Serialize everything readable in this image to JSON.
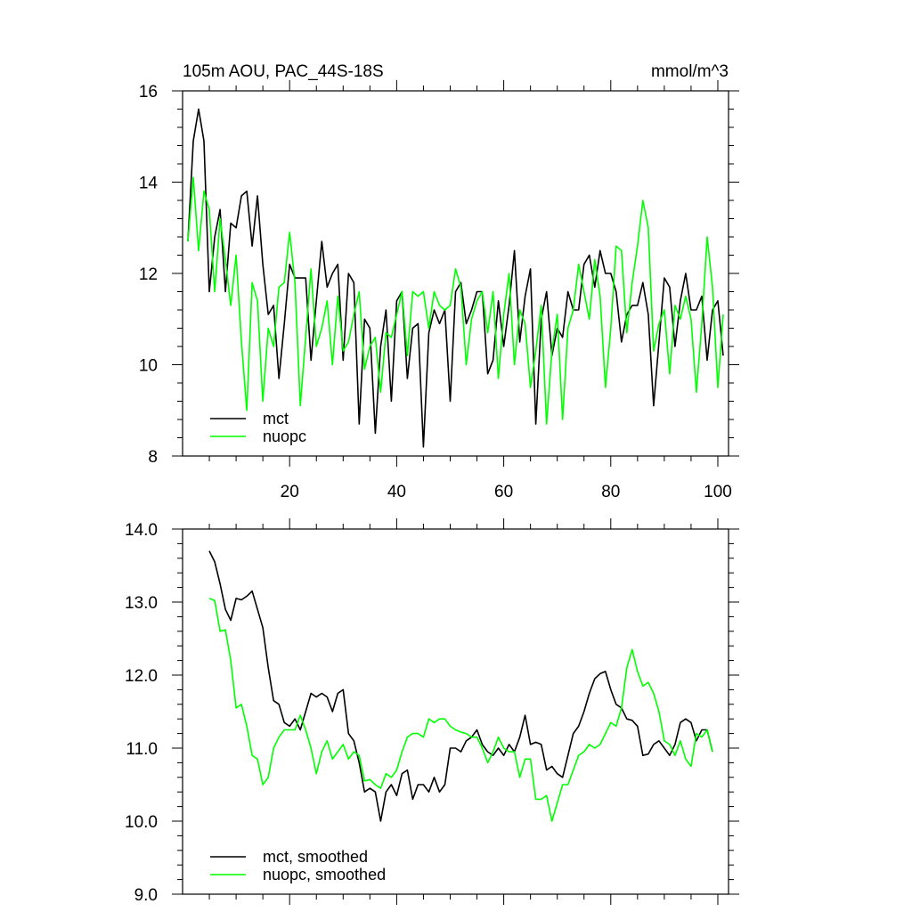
{
  "chart_data": [
    {
      "type": "line",
      "title": "105m AOU, PAC_44S-18S",
      "units": "mmol/m^3",
      "xlim": [
        0,
        102
      ],
      "ylim": [
        8,
        16
      ],
      "xticks": [
        20,
        40,
        60,
        80,
        100
      ],
      "yticks": [
        8,
        10,
        12,
        14,
        16
      ],
      "series": [
        {
          "name": "mct",
          "color": "#000000",
          "x_start": 1,
          "values": [
            12.7,
            14.9,
            15.6,
            14.9,
            11.6,
            12.8,
            13.4,
            11.6,
            13.1,
            13.0,
            13.7,
            13.8,
            12.6,
            13.7,
            12.2,
            11.1,
            11.3,
            9.7,
            10.9,
            12.2,
            11.9,
            11.9,
            11.9,
            10.1,
            11.4,
            12.7,
            11.7,
            12.0,
            12.2,
            10.1,
            12.0,
            11.8,
            8.7,
            11.0,
            10.8,
            8.5,
            10.4,
            11.2,
            9.2,
            11.4,
            11.6,
            9.7,
            10.8,
            10.9,
            8.2,
            10.7,
            11.2,
            10.9,
            11.2,
            9.2,
            11.6,
            11.8,
            10.9,
            11.2,
            11.6,
            11.6,
            9.8,
            10.1,
            11.4,
            10.4,
            11.3,
            12.5,
            10.5,
            11.5,
            12.1,
            8.7,
            11.0,
            11.6,
            10.2,
            10.8,
            10.6,
            11.6,
            11.2,
            11.2,
            12.2,
            12.4,
            11.7,
            12.5,
            12.0,
            12.0,
            11.6,
            10.5,
            11.1,
            11.3,
            11.3,
            11.8,
            11.1,
            9.1,
            10.5,
            11.9,
            11.7,
            10.4,
            11.4,
            12.0,
            11.2,
            11.2,
            11.5,
            10.1,
            11.2,
            11.4,
            10.2
          ],
          "smoothed_note": ""
        },
        {
          "name": "nuopc",
          "color": "#00ff00",
          "x_start": 1,
          "values": [
            12.7,
            14.1,
            12.5,
            13.8,
            13.4,
            11.6,
            13.2,
            12.3,
            11.3,
            12.4,
            10.5,
            9.0,
            11.8,
            11.4,
            9.2,
            10.8,
            10.4,
            11.7,
            11.8,
            12.9,
            11.8,
            9.1,
            10.6,
            12.1,
            10.4,
            10.8,
            11.4,
            10.0,
            11.5,
            10.3,
            10.5,
            11.1,
            11.6,
            9.9,
            10.4,
            10.6,
            9.4,
            10.7,
            10.6,
            11.1,
            11.6,
            10.2,
            11.6,
            11.5,
            11.6,
            10.8,
            11.6,
            11.3,
            11.2,
            11.3,
            12.1,
            11.7,
            10.0,
            11.0,
            11.4,
            11.6,
            10.7,
            11.6,
            9.7,
            11.1,
            12.0,
            10.0,
            11.2,
            10.9,
            9.5,
            10.3,
            11.3,
            8.7,
            10.3,
            11.1,
            8.8,
            10.8,
            11.2,
            12.2,
            11.6,
            11.0,
            12.3,
            11.5,
            9.5,
            10.8,
            12.6,
            12.5,
            10.7,
            11.8,
            12.6,
            13.6,
            13.0,
            10.3,
            10.9,
            11.2,
            9.8,
            11.3,
            11.0,
            11.5,
            11.0,
            9.4,
            10.9,
            12.8,
            11.7,
            9.5,
            11.1
          ]
        }
      ],
      "legend": {
        "placement": "bottom-left",
        "entries": [
          "mct",
          "nuopc"
        ]
      }
    },
    {
      "type": "line",
      "title": "",
      "xlim": [
        0,
        102
      ],
      "ylim": [
        9.0,
        14.0
      ],
      "xticks": [
        20,
        40,
        60,
        80,
        100
      ],
      "xticks_labeled": false,
      "yticks": [
        9.0,
        10.0,
        11.0,
        12.0,
        13.0,
        14.0
      ],
      "ytick_labels": [
        "9.0",
        "10.0",
        "11.0",
        "12.0",
        "13.0",
        "14.0"
      ],
      "series": [
        {
          "name": "mct, smoothed",
          "color": "#000000",
          "x_start": 5,
          "values": [
            13.7,
            13.55,
            13.25,
            12.9,
            12.75,
            13.05,
            13.03,
            13.08,
            13.15,
            12.9,
            12.65,
            12.1,
            11.65,
            11.6,
            11.35,
            11.3,
            11.4,
            11.25,
            11.5,
            11.75,
            11.7,
            11.75,
            11.7,
            11.5,
            11.75,
            11.8,
            11.2,
            11.1,
            10.8,
            10.4,
            10.45,
            10.4,
            10.0,
            10.4,
            10.5,
            10.35,
            10.65,
            10.7,
            10.3,
            10.5,
            10.5,
            10.4,
            10.6,
            10.4,
            10.5,
            11.0,
            11.0,
            10.95,
            11.1,
            11.15,
            11.25,
            11.05,
            10.95,
            10.9,
            11.0,
            10.9,
            11.05,
            10.95,
            11.15,
            11.45,
            11.05,
            11.08,
            11.05,
            10.7,
            10.75,
            10.65,
            10.6,
            10.9,
            11.2,
            11.3,
            11.5,
            11.75,
            11.95,
            12.02,
            12.05,
            11.8,
            11.6,
            11.55,
            11.4,
            11.38,
            11.3,
            10.9,
            10.92,
            11.05,
            11.1,
            11.0,
            10.9,
            11.05,
            11.35,
            11.4,
            11.35,
            11.1,
            11.25,
            11.25,
            10.95
          ],
          "smoothed_note": ""
        },
        {
          "name": "nuopc, smoothed",
          "color": "#00ff00",
          "x_start": 5,
          "values": [
            13.05,
            13.02,
            12.6,
            12.62,
            12.2,
            11.55,
            11.6,
            11.3,
            10.9,
            10.85,
            10.5,
            10.6,
            11.0,
            11.15,
            11.25,
            11.25,
            11.25,
            11.45,
            11.25,
            11.0,
            10.65,
            10.95,
            11.1,
            10.85,
            10.95,
            11.05,
            10.85,
            10.95,
            10.9,
            10.55,
            10.57,
            10.5,
            10.45,
            10.65,
            10.6,
            10.7,
            10.95,
            11.15,
            11.2,
            11.2,
            11.15,
            11.4,
            11.35,
            11.4,
            11.4,
            11.3,
            11.25,
            11.22,
            11.2,
            11.15,
            11.15,
            11.0,
            10.8,
            10.95,
            11.15,
            11.0,
            10.95,
            10.95,
            10.6,
            10.85,
            10.85,
            10.3,
            10.3,
            10.35,
            10.0,
            10.25,
            10.5,
            10.5,
            10.7,
            10.9,
            10.95,
            11.05,
            11.0,
            11.05,
            11.2,
            11.35,
            11.3,
            11.55,
            12.1,
            12.35,
            12.05,
            11.85,
            11.9,
            11.75,
            11.5,
            11.1,
            11.05,
            10.9,
            11.1,
            10.85,
            10.75,
            11.2,
            11.15,
            11.25,
            10.95
          ],
          "smoothed_note": ""
        }
      ],
      "legend": {
        "placement": "bottom-left",
        "entries": [
          "mct, smoothed",
          "nuopc, smoothed"
        ]
      }
    }
  ]
}
